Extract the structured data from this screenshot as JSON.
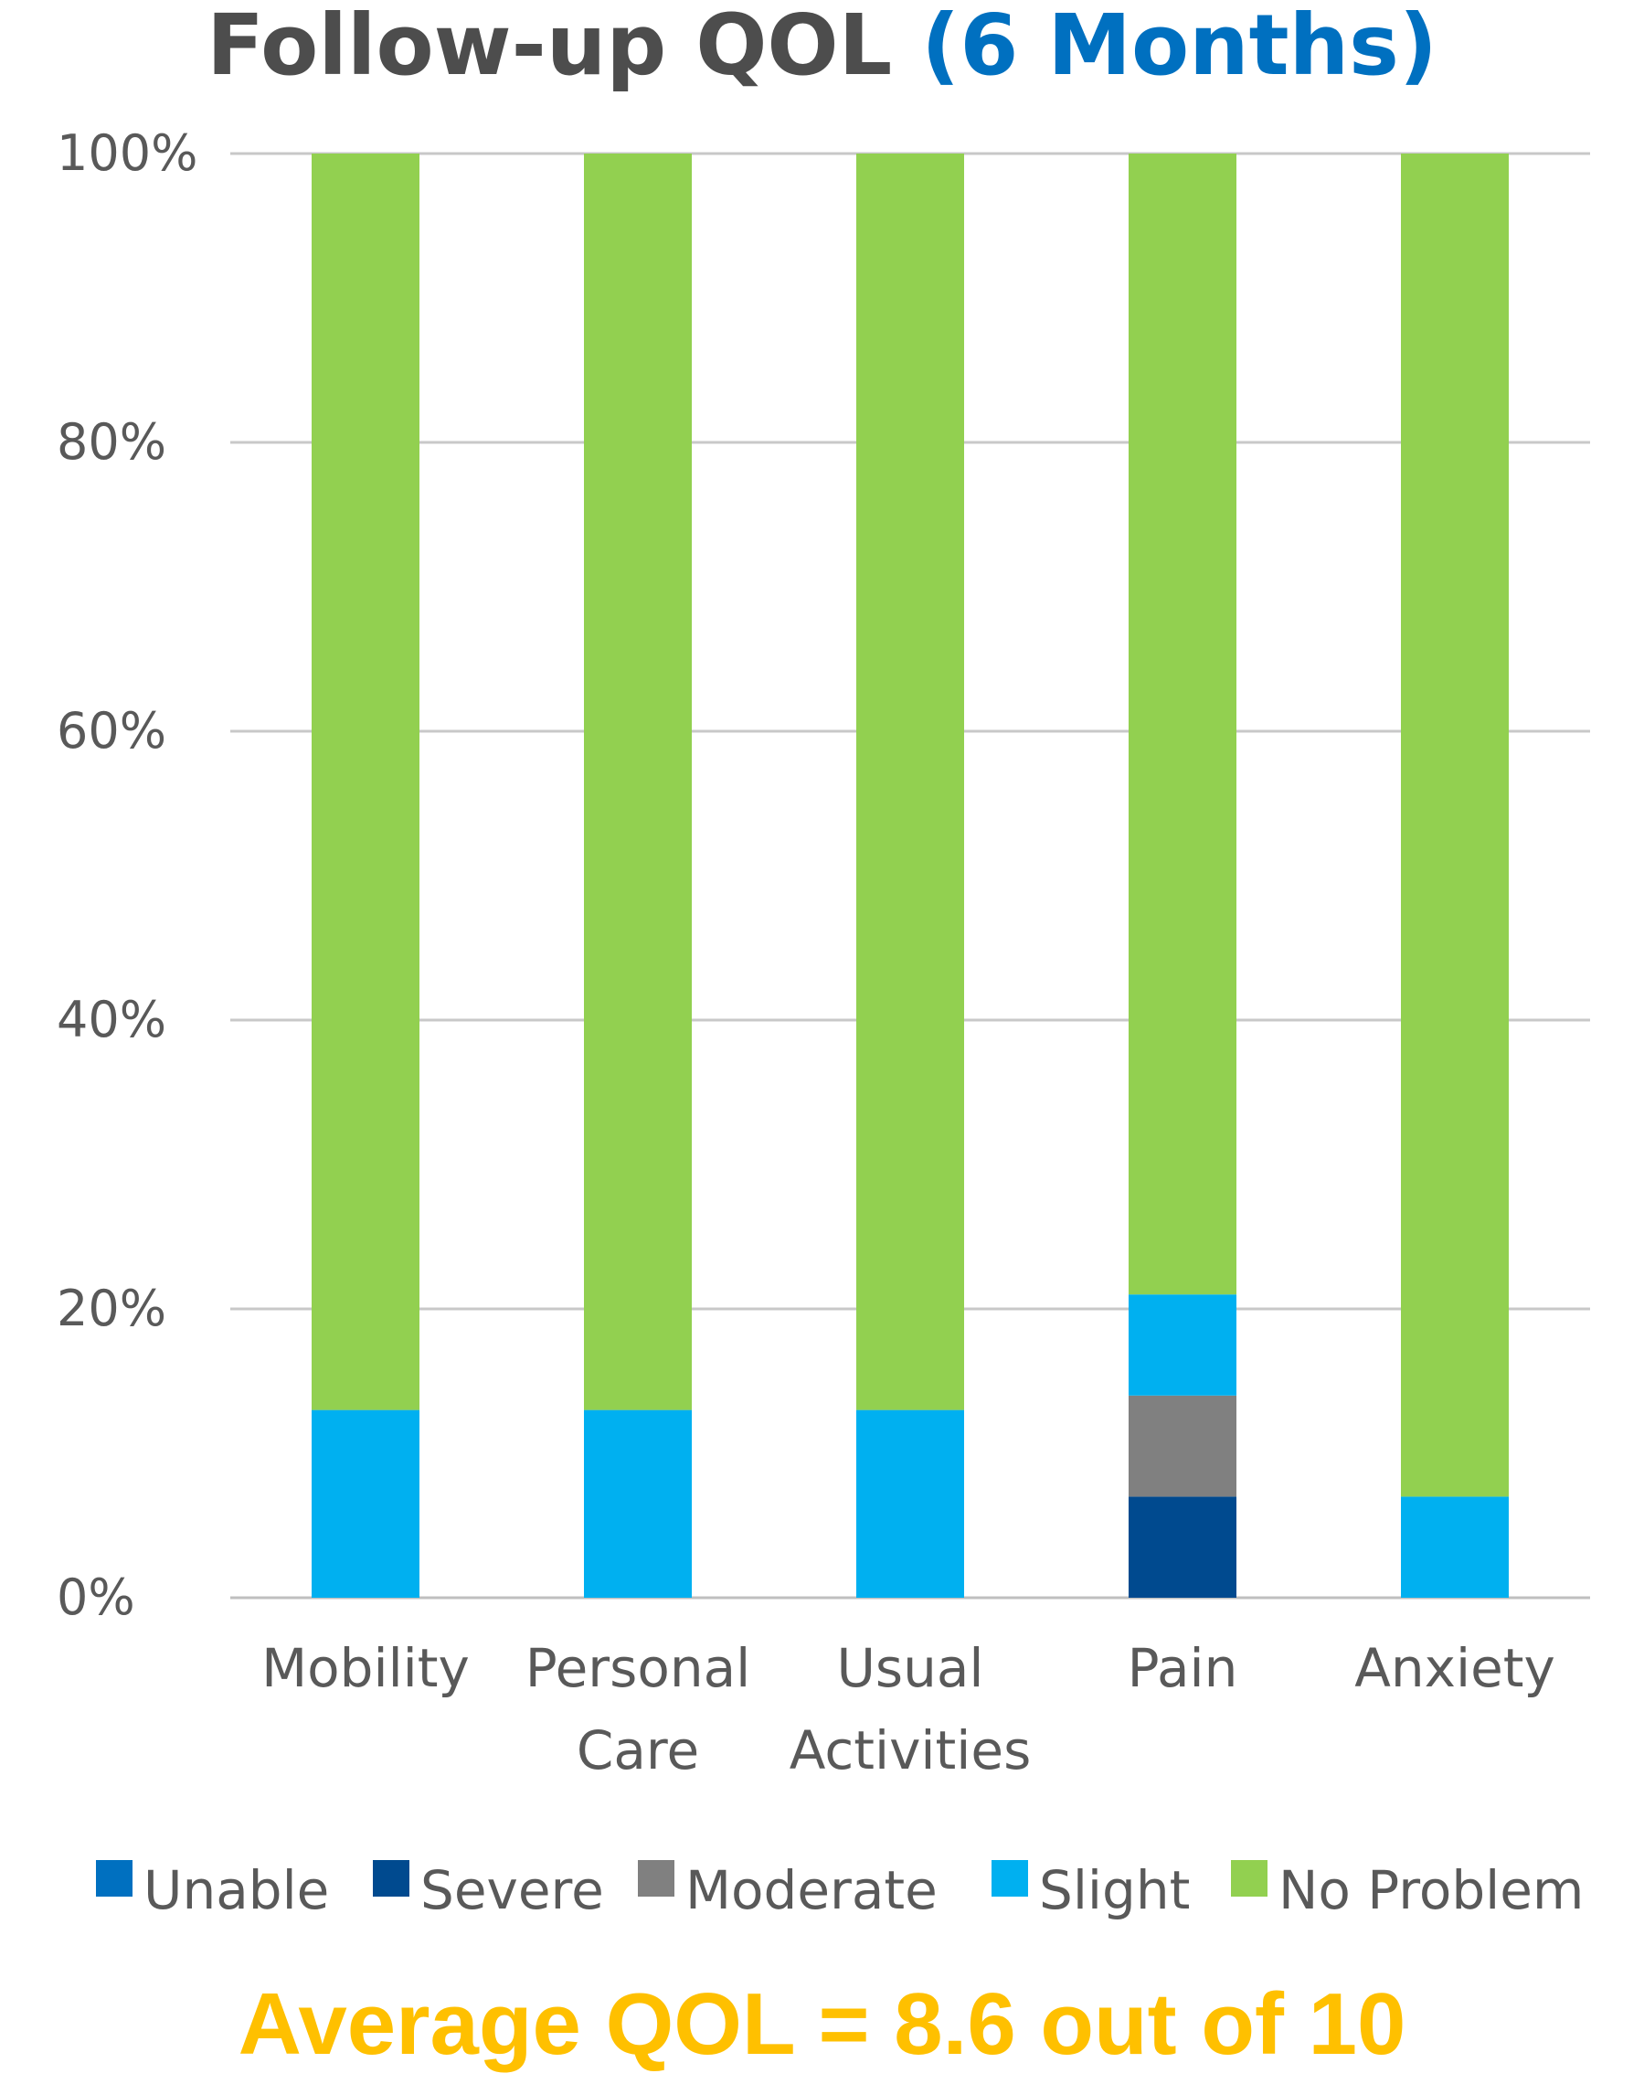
{
  "chart_data": {
    "type": "bar",
    "stacked": true,
    "title": "Follow-up QOL",
    "title_accent": "(6 Months)",
    "categories": [
      [
        "Mobility"
      ],
      [
        "Personal",
        "Care"
      ],
      [
        "Usual",
        "Activities"
      ],
      [
        "Pain"
      ],
      [
        "Anxiety"
      ]
    ],
    "series": [
      {
        "name": "Unable",
        "color": "#0070c0",
        "values": [
          0,
          0,
          0,
          0,
          0
        ]
      },
      {
        "name": "Severe",
        "color": "#004a8f",
        "values": [
          0,
          0,
          0,
          7,
          0
        ]
      },
      {
        "name": "Moderate",
        "color": "#808080",
        "values": [
          0,
          0,
          0,
          7,
          0
        ]
      },
      {
        "name": "Slight",
        "color": "#00b0f0",
        "values": [
          13,
          13,
          13,
          7,
          7
        ]
      },
      {
        "name": "No Problem",
        "color": "#92d050",
        "values": [
          87,
          87,
          87,
          79,
          93
        ]
      }
    ],
    "yticks": [
      "0%",
      "20%",
      "40%",
      "60%",
      "80%",
      "100%"
    ],
    "ylim": [
      0,
      100
    ],
    "grid": true,
    "legend_position": "bottom"
  },
  "footer": {
    "text": "Average QOL = 8.6 out of 10"
  }
}
